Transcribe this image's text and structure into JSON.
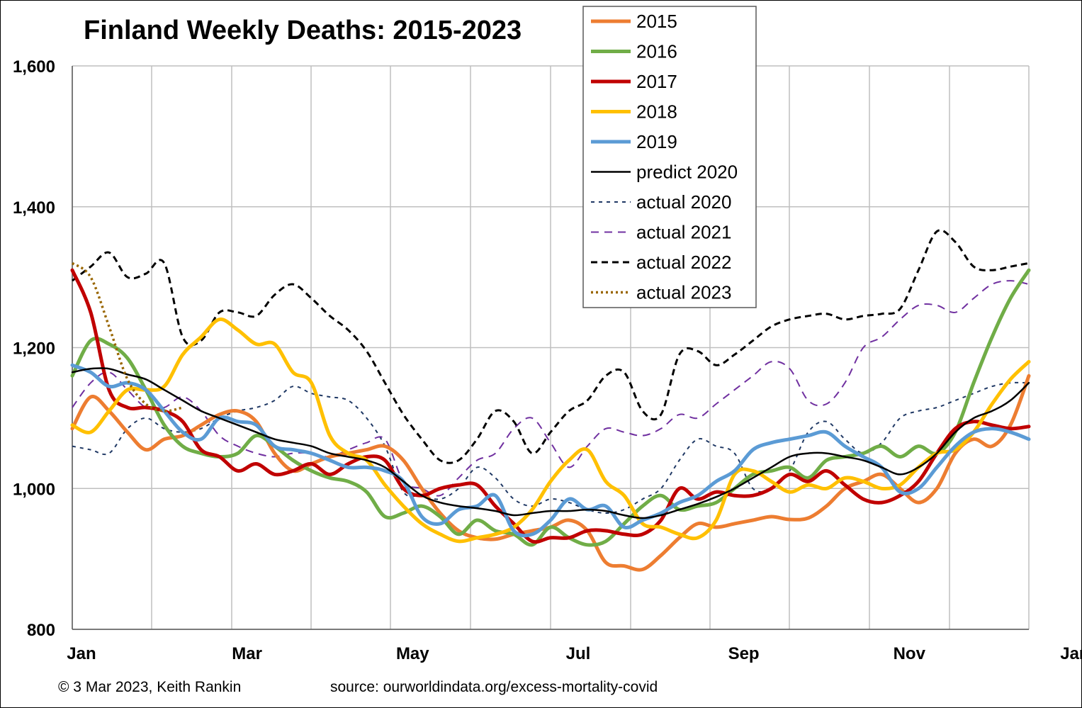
{
  "chart_data": {
    "type": "line",
    "title": "Finland Weekly Deaths: 2015-2023",
    "xlabel": "",
    "ylabel": "",
    "ylim": [
      800,
      1600
    ],
    "y_ticks": [
      "800",
      "1,000",
      "1,200",
      "1,400",
      "1,600"
    ],
    "y_tick_values": [
      800,
      1000,
      1200,
      1400,
      1600
    ],
    "x_ticks": [
      "Jan",
      "Mar",
      "May",
      "Jul",
      "Sep",
      "Nov",
      "Jan"
    ],
    "x_tick_weeks": [
      1.5,
      10.5,
      19.5,
      28.5,
      37.5,
      46.5,
      55.5
    ],
    "xlim_weeks": [
      1,
      53
    ],
    "grid": true,
    "legend_position": "top-center",
    "series": [
      {
        "name": "2015",
        "color": "#ED7D31",
        "dash": "solid",
        "width": 5,
        "x": [
          1,
          2,
          3,
          4,
          5,
          6,
          7,
          8,
          9,
          10,
          11,
          12,
          13,
          14,
          15,
          16,
          17,
          18,
          19,
          20,
          21,
          22,
          23,
          24,
          25,
          26,
          27,
          28,
          29,
          30,
          31,
          32,
          33,
          34,
          35,
          36,
          37,
          38,
          39,
          40,
          41,
          42,
          43,
          44,
          45,
          46,
          47,
          48,
          49,
          50,
          51,
          52,
          53
        ],
        "y": [
          1085,
          1130,
          1110,
          1080,
          1055,
          1070,
          1075,
          1090,
          1105,
          1110,
          1095,
          1050,
          1025,
          1035,
          1045,
          1050,
          1055,
          1060,
          1040,
          1000,
          965,
          940,
          930,
          928,
          935,
          940,
          945,
          955,
          940,
          895,
          890,
          885,
          905,
          930,
          950,
          945,
          950,
          955,
          960,
          956,
          958,
          975,
          1000,
          1010,
          1020,
          1000,
          980,
          1000,
          1050,
          1070,
          1060,
          1090,
          1160
        ]
      },
      {
        "name": "2016",
        "color": "#70AD47",
        "dash": "solid",
        "width": 5,
        "x": [
          1,
          2,
          3,
          4,
          5,
          6,
          7,
          8,
          9,
          10,
          11,
          12,
          13,
          14,
          15,
          16,
          17,
          18,
          19,
          20,
          21,
          22,
          23,
          24,
          25,
          26,
          27,
          28,
          29,
          30,
          31,
          32,
          33,
          34,
          35,
          36,
          37,
          38,
          39,
          40,
          41,
          42,
          43,
          44,
          45,
          46,
          47,
          48,
          49,
          50,
          51,
          52,
          53
        ],
        "y": [
          1160,
          1210,
          1205,
          1185,
          1140,
          1090,
          1060,
          1050,
          1045,
          1050,
          1075,
          1060,
          1040,
          1025,
          1015,
          1010,
          995,
          960,
          965,
          975,
          960,
          935,
          955,
          940,
          935,
          920,
          945,
          930,
          920,
          925,
          950,
          975,
          990,
          970,
          975,
          980,
          1000,
          1020,
          1025,
          1030,
          1015,
          1040,
          1045,
          1050,
          1060,
          1045,
          1060,
          1050,
          1080,
          1150,
          1215,
          1270,
          1310
        ]
      },
      {
        "name": "2017",
        "color": "#C00000",
        "dash": "solid",
        "width": 5,
        "x": [
          1,
          2,
          3,
          4,
          5,
          6,
          7,
          8,
          9,
          10,
          11,
          12,
          13,
          14,
          15,
          16,
          17,
          18,
          19,
          20,
          21,
          22,
          23,
          24,
          25,
          26,
          27,
          28,
          29,
          30,
          31,
          32,
          33,
          34,
          35,
          36,
          37,
          38,
          39,
          40,
          41,
          42,
          43,
          44,
          45,
          46,
          47,
          48,
          49,
          50,
          51,
          52,
          53
        ],
        "y": [
          1310,
          1250,
          1140,
          1115,
          1115,
          1110,
          1095,
          1055,
          1045,
          1025,
          1035,
          1020,
          1025,
          1035,
          1020,
          1035,
          1045,
          1040,
          1000,
          990,
          1000,
          1005,
          1005,
          975,
          950,
          925,
          930,
          930,
          940,
          940,
          935,
          935,
          955,
          1000,
          985,
          995,
          990,
          990,
          1000,
          1020,
          1010,
          1025,
          1005,
          985,
          980,
          990,
          1010,
          1050,
          1085,
          1095,
          1090,
          1085,
          1088
        ]
      },
      {
        "name": "2018",
        "color": "#FFC000",
        "dash": "solid",
        "width": 5,
        "x": [
          1,
          2,
          3,
          4,
          5,
          6,
          7,
          8,
          9,
          10,
          11,
          12,
          13,
          14,
          15,
          16,
          17,
          18,
          19,
          20,
          21,
          22,
          23,
          24,
          25,
          26,
          27,
          28,
          29,
          30,
          31,
          32,
          33,
          34,
          35,
          36,
          37,
          38,
          39,
          40,
          41,
          42,
          43,
          44,
          45,
          46,
          47,
          48,
          49,
          50,
          51,
          52,
          53
        ],
        "y": [
          1090,
          1080,
          1110,
          1140,
          1140,
          1145,
          1190,
          1215,
          1240,
          1225,
          1205,
          1205,
          1165,
          1150,
          1075,
          1050,
          1040,
          1005,
          975,
          950,
          935,
          925,
          930,
          935,
          945,
          970,
          1010,
          1040,
          1055,
          1010,
          990,
          950,
          945,
          935,
          930,
          955,
          1020,
          1025,
          1010,
          995,
          1005,
          1000,
          1015,
          1010,
          1000,
          1005,
          1030,
          1050,
          1055,
          1080,
          1120,
          1155,
          1180
        ]
      },
      {
        "name": "2019",
        "color": "#5B9BD5",
        "dash": "solid",
        "width": 5,
        "x": [
          1,
          2,
          3,
          4,
          5,
          6,
          7,
          8,
          9,
          10,
          11,
          12,
          13,
          14,
          15,
          16,
          17,
          18,
          19,
          20,
          21,
          22,
          23,
          24,
          25,
          26,
          27,
          28,
          29,
          30,
          31,
          32,
          33,
          34,
          35,
          36,
          37,
          38,
          39,
          40,
          41,
          42,
          43,
          44,
          45,
          46,
          47,
          48,
          49,
          50,
          51,
          52,
          53
        ],
        "y": [
          1175,
          1165,
          1145,
          1150,
          1140,
          1110,
          1080,
          1070,
          1100,
          1095,
          1090,
          1060,
          1055,
          1050,
          1040,
          1030,
          1030,
          1025,
          1010,
          960,
          950,
          970,
          975,
          990,
          940,
          935,
          955,
          985,
          970,
          975,
          945,
          955,
          965,
          980,
          990,
          1010,
          1025,
          1055,
          1065,
          1070,
          1075,
          1080,
          1060,
          1045,
          1030,
          995,
          1000,
          1030,
          1060,
          1080,
          1085,
          1080,
          1070
        ]
      },
      {
        "name": "predict 2020",
        "color": "#000000",
        "dash": "solid",
        "width": 2.5,
        "x": [
          1,
          2,
          3,
          4,
          5,
          6,
          7,
          8,
          9,
          10,
          11,
          12,
          13,
          14,
          15,
          16,
          17,
          18,
          19,
          20,
          21,
          22,
          23,
          24,
          25,
          26,
          27,
          28,
          29,
          30,
          31,
          32,
          33,
          34,
          35,
          36,
          37,
          38,
          39,
          40,
          41,
          42,
          43,
          44,
          45,
          46,
          47,
          48,
          49,
          50,
          51,
          52,
          53
        ],
        "y": [
          1165,
          1170,
          1170,
          1162,
          1155,
          1140,
          1125,
          1110,
          1100,
          1090,
          1080,
          1070,
          1065,
          1060,
          1050,
          1045,
          1040,
          1030,
          1010,
          990,
          980,
          975,
          972,
          968,
          962,
          965,
          968,
          968,
          970,
          968,
          962,
          958,
          962,
          970,
          978,
          988,
          1000,
          1015,
          1030,
          1045,
          1050,
          1050,
          1045,
          1040,
          1030,
          1020,
          1030,
          1050,
          1080,
          1100,
          1110,
          1125,
          1150
        ]
      },
      {
        "name": "actual 2020",
        "color": "#1F3864",
        "dash": "5,6",
        "width": 2,
        "x": [
          1,
          2,
          3,
          4,
          5,
          6,
          7,
          8,
          9,
          10,
          11,
          12,
          13,
          14,
          15,
          16,
          17,
          18,
          19,
          20,
          21,
          22,
          23,
          24,
          25,
          26,
          27,
          28,
          29,
          30,
          31,
          32,
          33,
          34,
          35,
          36,
          37,
          38,
          39,
          40,
          41,
          42,
          43,
          44,
          45,
          46,
          47,
          48,
          49,
          50,
          51,
          52,
          53
        ],
        "y": [
          1060,
          1055,
          1050,
          1085,
          1100,
          1085,
          1080,
          1085,
          1100,
          1110,
          1115,
          1125,
          1145,
          1135,
          1130,
          1125,
          1100,
          1060,
          995,
          990,
          985,
          1000,
          1030,
          1015,
          985,
          975,
          985,
          980,
          970,
          965,
          970,
          985,
          1000,
          1040,
          1070,
          1060,
          1050,
          1000,
          1000,
          1025,
          1080,
          1095,
          1070,
          1050,
          1065,
          1100,
          1110,
          1115,
          1125,
          1135,
          1145,
          1150,
          1150
        ]
      },
      {
        "name": "actual 2021",
        "color": "#7030A0",
        "dash": "11,8",
        "width": 2,
        "x": [
          1,
          2,
          3,
          4,
          5,
          6,
          7,
          8,
          9,
          10,
          11,
          12,
          13,
          14,
          15,
          16,
          17,
          18,
          19,
          20,
          21,
          22,
          23,
          24,
          25,
          26,
          27,
          28,
          29,
          30,
          31,
          32,
          33,
          34,
          35,
          36,
          37,
          38,
          39,
          40,
          41,
          42,
          43,
          44,
          45,
          46,
          47,
          48,
          49,
          50,
          51,
          52,
          53
        ],
        "y": [
          1115,
          1150,
          1165,
          1140,
          1115,
          1115,
          1130,
          1110,
          1075,
          1060,
          1050,
          1045,
          1050,
          1050,
          1045,
          1055,
          1065,
          1070,
          1010,
          1000,
          990,
          1015,
          1040,
          1050,
          1085,
          1100,
          1065,
          1030,
          1060,
          1085,
          1080,
          1075,
          1085,
          1105,
          1100,
          1120,
          1140,
          1160,
          1180,
          1170,
          1125,
          1120,
          1150,
          1200,
          1215,
          1240,
          1260,
          1260,
          1250,
          1270,
          1290,
          1295,
          1290
        ]
      },
      {
        "name": "actual 2022",
        "color": "#000000",
        "dash": "9,6",
        "width": 3,
        "x": [
          1,
          2,
          3,
          4,
          5,
          6,
          7,
          8,
          9,
          10,
          11,
          12,
          13,
          14,
          15,
          16,
          17,
          18,
          19,
          20,
          21,
          22,
          23,
          24,
          25,
          26,
          27,
          28,
          29,
          30,
          31,
          32,
          33,
          34,
          35,
          36,
          37,
          38,
          39,
          40,
          41,
          42,
          43,
          44,
          45,
          46,
          47,
          48,
          49,
          50,
          51,
          52,
          53
        ],
        "y": [
          1295,
          1315,
          1335,
          1300,
          1305,
          1320,
          1215,
          1210,
          1250,
          1250,
          1245,
          1275,
          1290,
          1270,
          1245,
          1225,
          1195,
          1150,
          1105,
          1070,
          1040,
          1040,
          1070,
          1110,
          1095,
          1050,
          1080,
          1110,
          1125,
          1160,
          1165,
          1110,
          1105,
          1190,
          1195,
          1175,
          1190,
          1210,
          1230,
          1240,
          1245,
          1248,
          1240,
          1245,
          1248,
          1255,
          1310,
          1365,
          1350,
          1315,
          1310,
          1315,
          1320
        ]
      },
      {
        "name": "actual 2023",
        "color": "#996600",
        "dash": "3,4",
        "width": 3.5,
        "x": [
          1,
          2,
          3,
          4,
          5,
          6,
          7
        ],
        "y": [
          1320,
          1300,
          1230,
          1155,
          1120,
          1110,
          1115
        ]
      }
    ]
  },
  "footer": {
    "copyright": "© 3 Mar 2023, Keith Rankin",
    "source": "source: ourworldindata.org/excess-mortality-covid"
  }
}
